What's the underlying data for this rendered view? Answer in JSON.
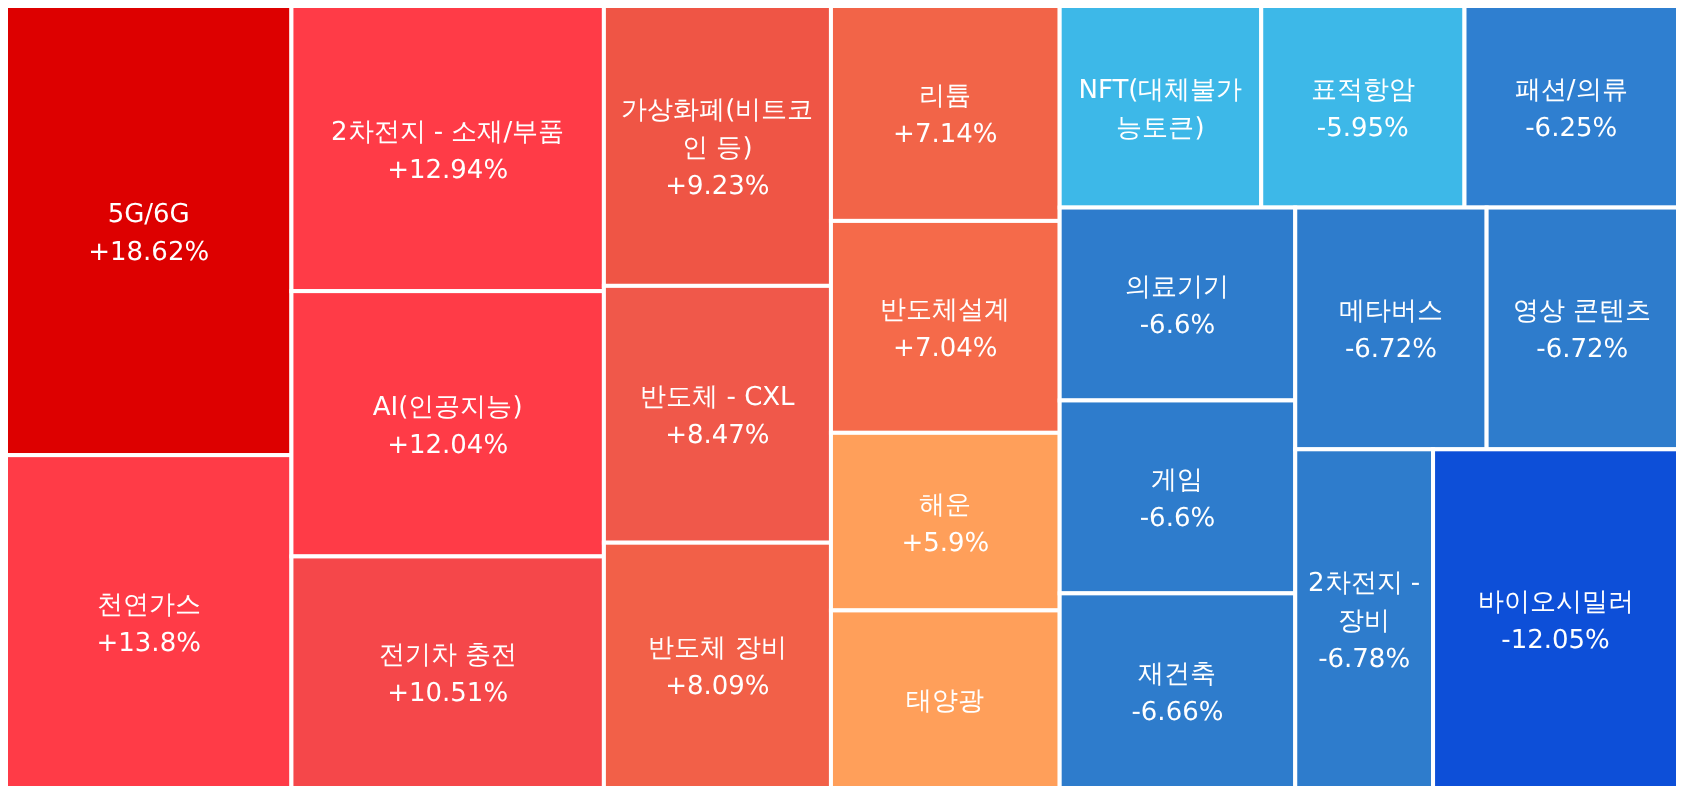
{
  "chart_data": {
    "type": "other",
    "categories": [
      "5G/6G",
      "천연가스",
      "2차전지 - 소재/부품",
      "AI(인공지능)",
      "전기차 충전",
      "가상화폐(비트코인 등)",
      "반도체 - CXL",
      "반도체 장비",
      "리튬",
      "반도체설계",
      "해운",
      "태양광",
      "NFT(대체불가능토큰)",
      "표적항암",
      "패션/의류",
      "의료기기",
      "게임",
      "재건축",
      "메타버스",
      "영상 콘텐츠",
      "2차전지 - 장비",
      "바이오시밀러"
    ],
    "values": [
      18.62,
      13.8,
      12.94,
      12.04,
      10.51,
      9.23,
      8.47,
      8.09,
      7.14,
      7.04,
      5.9,
      null,
      null,
      -5.95,
      -6.25,
      -6.6,
      -6.6,
      -6.66,
      -6.72,
      -6.72,
      -6.78,
      -12.05
    ],
    "value_labels": [
      "+18.62%",
      "+13.8%",
      "+12.94%",
      "+12.04%",
      "+10.51%",
      "+9.23%",
      "+8.47%",
      "+8.09%",
      "+7.14%",
      "+7.04%",
      "+5.9%",
      null,
      null,
      "-5.95%",
      "-6.25%",
      "-6.6%",
      "-6.6%",
      "-6.66%",
      "-6.72%",
      "-6.72%",
      "-6.78%",
      "-12.05%"
    ],
    "colors": [
      "#dd0000",
      "#ff3b47",
      "#ff3b47",
      "#ff3b47",
      "#f5474a",
      "#ef5545",
      "#f0584a",
      "#f26048",
      "#f26448",
      "#f56a4a",
      "#ff9f5a",
      "#ff9f5a",
      "#3db8e8",
      "#3db8e8",
      "#2f7fd0",
      "#2e7ccc",
      "#2e7ccc",
      "#2e7ccc",
      "#2e7ccc",
      "#2e7ccc",
      "#2e7ccc",
      "#0d4fd8"
    ]
  }
}
